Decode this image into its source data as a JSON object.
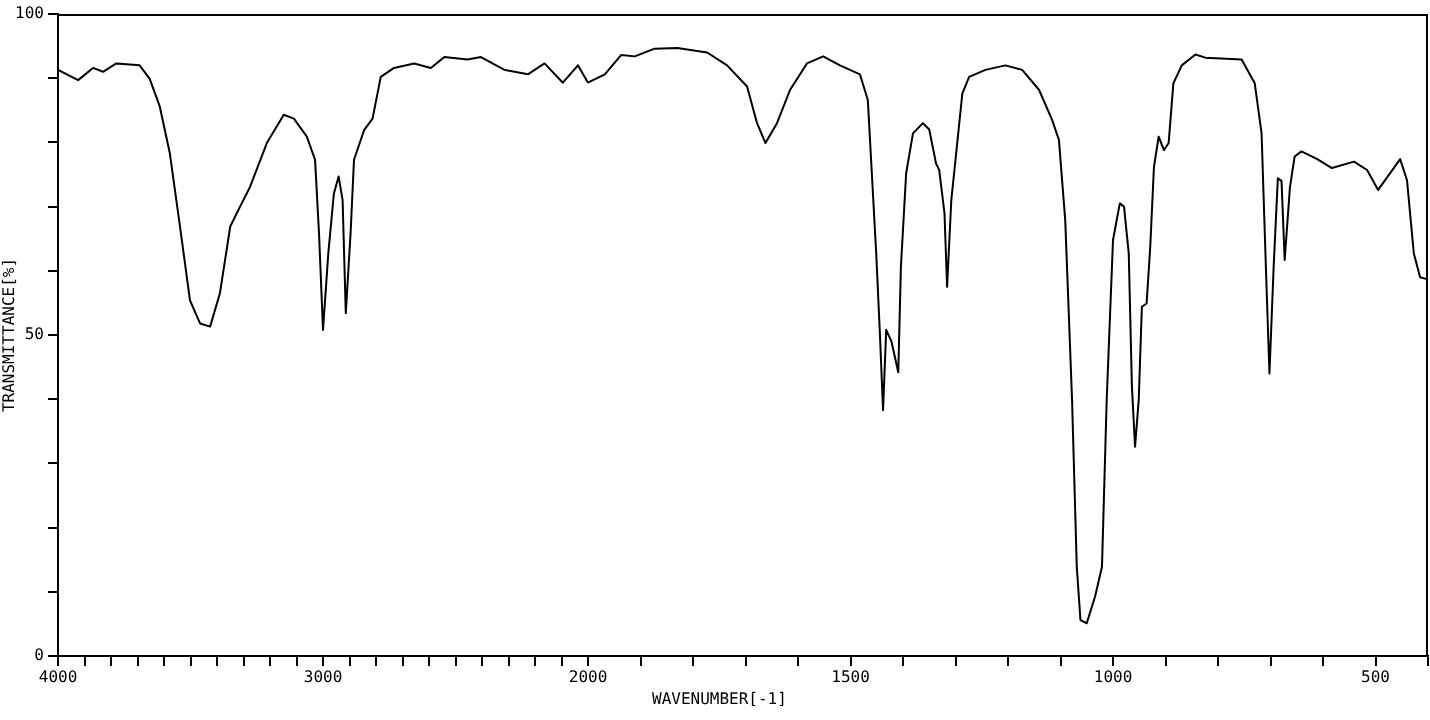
{
  "chart_data": [
    {
      "type": "line",
      "ylabel": "TRANSMITTANCE[%]",
      "xlim": [
        4000,
        2000
      ],
      "ylim": [
        0,
        100
      ],
      "xticks": [
        4000,
        {
          "value": 3900,
          "label": null
        },
        {
          "value": 3800,
          "label": null
        },
        {
          "value": 3700,
          "label": null
        },
        {
          "value": 3600,
          "label": null
        },
        {
          "value": 3500,
          "label": null
        },
        {
          "value": 3400,
          "label": null
        },
        {
          "value": 3300,
          "label": null
        },
        {
          "value": 3200,
          "label": null
        },
        {
          "value": 3100,
          "label": null
        },
        3000,
        {
          "value": 2900,
          "label": null
        },
        {
          "value": 2800,
          "label": null
        },
        {
          "value": 2700,
          "label": null
        },
        {
          "value": 2600,
          "label": null
        },
        {
          "value": 2500,
          "label": null
        },
        {
          "value": 2400,
          "label": null
        },
        {
          "value": 2300,
          "label": null
        },
        {
          "value": 2200,
          "label": null
        },
        {
          "value": 2100,
          "label": null
        }
      ],
      "yticks": [
        0,
        {
          "value": 10,
          "label": null
        },
        {
          "value": 20,
          "label": null
        },
        {
          "value": 30,
          "label": null
        },
        {
          "value": 40,
          "label": null
        },
        50,
        {
          "value": 60,
          "label": null
        },
        {
          "value": 70,
          "label": null
        },
        {
          "value": 80,
          "label": null
        },
        {
          "value": 90,
          "label": null
        },
        100
      ],
      "grid": false,
      "legend": false,
      "marker": "none",
      "line_style": "solid",
      "series": [
        {
          "color": "#000000",
          "x": [
            4000,
            3924,
            3868,
            3830,
            3780,
            3692,
            3654,
            3616,
            3578,
            3540,
            3502,
            3464,
            3426,
            3389,
            3350,
            3313,
            3275,
            3212,
            3148,
            3110,
            3061,
            3030,
            3015,
            3000,
            2980,
            2959,
            2941,
            2926,
            2914,
            2896,
            2883,
            2845,
            2813,
            2782,
            2732,
            2656,
            2593,
            2542,
            2455,
            2404,
            2315,
            2227,
            2164,
            2095,
            2038,
            2000
          ],
          "values": [
            91.3,
            89.7,
            91.6,
            91,
            92.3,
            92,
            89.9,
            85.6,
            78.3,
            67,
            55.4,
            51.8,
            51.3,
            56.5,
            66.9,
            70,
            73.1,
            79.9,
            84.3,
            83.7,
            80.9,
            77.3,
            65.8,
            50.8,
            62.7,
            72,
            74.7,
            71,
            53.4,
            65.8,
            77.3,
            81.9,
            83.7,
            90.2,
            91.6,
            92.3,
            91.6,
            93.3,
            92.9,
            93.3,
            91.3,
            90.6,
            92.3,
            89.3,
            92,
            89.3
          ]
        }
      ]
    },
    {
      "type": "line",
      "xlabel": "WAVENUMBER[-1]",
      "xlim": [
        2000,
        400
      ],
      "ylim": [
        0,
        100
      ],
      "tick_labels": "x",
      "xticks": [
        2000,
        {
          "value": 1900,
          "label": null
        },
        {
          "value": 1800,
          "label": null
        },
        {
          "value": 1700,
          "label": null
        },
        {
          "value": 1600,
          "label": null
        },
        1500,
        {
          "value": 1400,
          "label": null
        },
        {
          "value": 1300,
          "label": null
        },
        {
          "value": 1200,
          "label": null
        },
        {
          "value": 1100,
          "label": null
        },
        1000,
        {
          "value": 900,
          "label": null
        },
        {
          "value": 800,
          "label": null
        },
        {
          "value": 700,
          "label": null
        },
        {
          "value": 600,
          "label": null
        },
        500,
        {
          "value": 400,
          "label": null
        }
      ],
      "grid": false,
      "legend": false,
      "marker": "none",
      "line_style": "solid",
      "series": [
        {
          "color": "#000000",
          "x": [
            2000,
            1968,
            1937,
            1911,
            1873,
            1830,
            1773,
            1735,
            1697,
            1678,
            1662,
            1640,
            1615,
            1583,
            1552,
            1520,
            1482,
            1467,
            1451,
            1444,
            1438,
            1432,
            1422,
            1409,
            1404,
            1394,
            1381,
            1362,
            1350,
            1337,
            1331,
            1321,
            1316,
            1308,
            1300,
            1287,
            1274,
            1243,
            1205,
            1173,
            1141,
            1116,
            1103,
            1091,
            1078,
            1069,
            1062,
            1050,
            1034,
            1021,
            1012,
            1000,
            987,
            979,
            970,
            964,
            958,
            951,
            945,
            936,
            929,
            922,
            913,
            903,
            894,
            885,
            869,
            843,
            824,
            755,
            730,
            717,
            708,
            702,
            694,
            686,
            679,
            673,
            663,
            654,
            641,
            611,
            583,
            541,
            516,
            495,
            453,
            440,
            427,
            415,
            402
          ],
          "values": [
            89.3,
            90.6,
            93.6,
            93.4,
            94.6,
            94.7,
            94,
            92,
            88.7,
            83,
            79.9,
            83,
            88.2,
            92.3,
            93.4,
            92,
            90.6,
            86.6,
            62.7,
            50.2,
            38.3,
            50.8,
            49,
            44.2,
            60.6,
            75.2,
            81.4,
            83,
            82,
            76.7,
            75.7,
            69,
            57.5,
            71,
            77.3,
            87.6,
            90.2,
            91.3,
            92,
            91.3,
            88.2,
            83.5,
            80.4,
            67.9,
            39.9,
            13.9,
            5.6,
            5.1,
            9.3,
            13.9,
            39.9,
            64.8,
            70.5,
            70,
            62.7,
            42,
            32.6,
            39.9,
            54.4,
            54.9,
            63.8,
            76.2,
            80.9,
            78.8,
            79.9,
            89.2,
            92,
            93.7,
            93.2,
            92.9,
            89.2,
            81.4,
            58.6,
            44,
            60.6,
            74.4,
            74,
            61.7,
            73,
            77.8,
            78.6,
            77.4,
            76,
            77,
            75.7,
            72.6,
            77.4,
            74.1,
            62.7,
            59,
            58.7
          ]
        }
      ]
    }
  ]
}
